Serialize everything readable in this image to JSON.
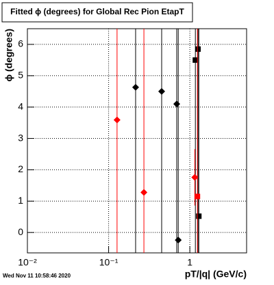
{
  "chart_data": {
    "type": "scatter",
    "title": "Fitted ϕ (degrees) for Global Rec Pion EtapT",
    "x_label": "pT/|q| (GeV/c)",
    "y_label": "ϕ (degrees)",
    "footer": "Wed Nov 11 10:58:46 2020",
    "xscale": "log",
    "grid": true,
    "xlim": [
      0.01,
      5
    ],
    "ylim": [
      -0.65,
      6.5
    ],
    "xticks": [
      {
        "value": 0.01,
        "label": "10⁻²"
      },
      {
        "value": 0.1,
        "label": "10⁻¹"
      },
      1
    ],
    "yticks": [
      0,
      1,
      2,
      3,
      4,
      5,
      6
    ],
    "series": [
      {
        "color": "#000000",
        "marker": "diamond",
        "x": [
          0.215,
          0.45,
          0.69,
          0.72
        ],
        "values": [
          4.63,
          4.5,
          4.1,
          -0.24
        ],
        "errors": [
          20,
          20,
          20,
          20
        ]
      },
      {
        "color": "#000000",
        "marker": "square",
        "x": [
          1.26,
          1.17,
          1.29
        ],
        "values": [
          5.85,
          5.5,
          0.52
        ],
        "errors": [
          20,
          20,
          20
        ]
      },
      {
        "color": "#ff0000",
        "marker": "diamond",
        "x": [
          0.127,
          0.272,
          1.15
        ],
        "values": [
          3.59,
          1.28,
          1.76
        ],
        "errors": [
          20,
          20,
          0.9
        ]
      },
      {
        "color": "#ff0000",
        "marker": "square",
        "x": [
          1.24
        ],
        "values": [
          1.15
        ],
        "errors": [
          20
        ]
      }
    ]
  }
}
